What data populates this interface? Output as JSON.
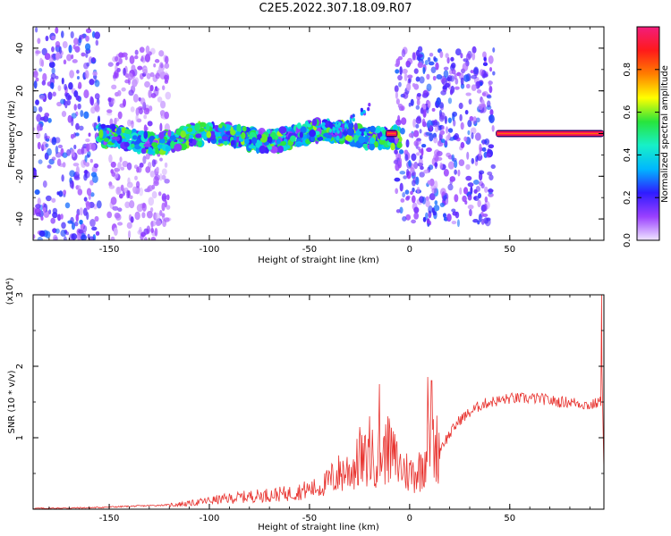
{
  "title": "C2E5.2022.307.18.09.R07",
  "colors": {
    "snr_line": "#e8332f",
    "colormap": [
      "#f0e6ff",
      "#9a40ff",
      "#2f1cff",
      "#00b7ff",
      "#17f0c8",
      "#28e43c",
      "#ffff00",
      "#ff7f00",
      "#ff1a1a",
      "#f21c7c"
    ]
  },
  "chart_data": [
    {
      "type": "heatmap",
      "xlabel": "Height of straight line (km)",
      "ylabel": "Frequency (Hz)",
      "xlim": [
        -188,
        97
      ],
      "ylim": [
        -50,
        50
      ],
      "xticks": [
        -150,
        -100,
        -50,
        0,
        50
      ],
      "yticks": [
        -40,
        -20,
        0,
        20,
        40
      ],
      "grid": false,
      "colorbar": {
        "label": "Normalized spectral amplitude",
        "range": [
          0,
          1
        ],
        "ticks": [
          "0.0",
          "0.2",
          "0.4",
          "0.6",
          "0.8"
        ]
      },
      "features": [
        {
          "name": "broadband noise",
          "x_range": [
            -188,
            -155
          ],
          "f_range": [
            -50,
            50
          ],
          "level": 0.15
        },
        {
          "name": "broadband noise",
          "x_range": [
            -150,
            -120
          ],
          "f_range": [
            -50,
            40
          ],
          "level": 0.08
        },
        {
          "name": "main trace",
          "x_range": [
            -155,
            -5
          ],
          "f_center_at_start": -3,
          "f_center_at_end": 0,
          "peak_level": 0.5
        },
        {
          "name": "rising branch",
          "x_range": [
            -40,
            -20
          ],
          "f_from": 0,
          "f_to": 12,
          "level": 0.3
        },
        {
          "name": "scattered band",
          "x_range": [
            -7,
            42
          ],
          "f_range": [
            -42,
            40
          ],
          "level": 0.15
        },
        {
          "name": "strong narrow line",
          "x_range": [
            -12,
            -6
          ],
          "f_center": 0,
          "level": 0.95
        },
        {
          "name": "strong narrow line",
          "x_range": [
            43,
            97
          ],
          "f_center": 0,
          "level": 0.95
        }
      ]
    },
    {
      "type": "line",
      "xlabel": "Height of straight line (km)",
      "ylabel": "SNR (10 * v/v)",
      "y_multiplier": "(x10⁴)",
      "xlim": [
        -188,
        97
      ],
      "ylim": [
        0,
        3
      ],
      "xticks": [
        -150,
        -100,
        -50,
        0,
        50
      ],
      "yticks": [
        1,
        2,
        3
      ],
      "grid": false,
      "series": [
        {
          "x": [
            -188,
            -160,
            -140,
            -120,
            -110,
            -100,
            -90,
            -80,
            -70,
            -60,
            -50,
            -45,
            -40,
            -35,
            -30,
            -25,
            -20,
            -15,
            -10,
            -5,
            0,
            5,
            10,
            15,
            20,
            25,
            30,
            35,
            40,
            45,
            50,
            55,
            60,
            65,
            70,
            75,
            80,
            85,
            90,
            95
          ],
          "values": [
            0.01,
            0.02,
            0.04,
            0.06,
            0.08,
            0.12,
            0.15,
            0.18,
            0.2,
            0.22,
            0.28,
            0.3,
            0.4,
            0.5,
            0.55,
            0.65,
            0.7,
            0.75,
            0.8,
            0.6,
            0.5,
            0.55,
            0.9,
            0.85,
            1.05,
            1.25,
            1.35,
            1.45,
            1.5,
            1.52,
            1.55,
            1.55,
            1.55,
            1.55,
            1.52,
            1.5,
            1.5,
            1.48,
            1.45,
            1.5
          ]
        }
      ],
      "spikes": [
        {
          "x": -25,
          "value": 1.15
        },
        {
          "x": -20,
          "value": 1.3
        },
        {
          "x": -15,
          "value": 1.75
        },
        {
          "x": -11,
          "value": 1.3
        },
        {
          "x": 9,
          "value": 1.85
        },
        {
          "x": 11,
          "value": 1.8
        },
        {
          "x": 96,
          "value": 3.0
        }
      ]
    }
  ]
}
